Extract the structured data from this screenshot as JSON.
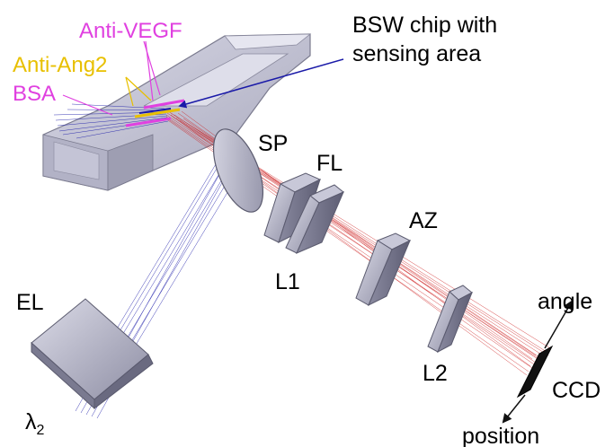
{
  "labels": {
    "anti_vegf": "Anti-VEGF",
    "anti_ang2": "Anti-Ang2",
    "bsa": "BSA",
    "chip_line1": "BSW chip with",
    "chip_line2": "sensing area",
    "sp": "SP",
    "fl": "FL",
    "l1": "L1",
    "az": "AZ",
    "l2": "L2",
    "el": "EL",
    "lambda": "λ",
    "lambda_sub": "2",
    "ccd": "CCD",
    "angle": "angle",
    "position": "position"
  },
  "colors": {
    "magenta": "#e040e0",
    "yellow": "#e8c000",
    "blue": "#1a1aa8",
    "red": "#cc1a1a",
    "optic_face": "#b4b4c8",
    "optic_edge": "#5a5a6e",
    "chip_body": "#c6c6d8"
  }
}
